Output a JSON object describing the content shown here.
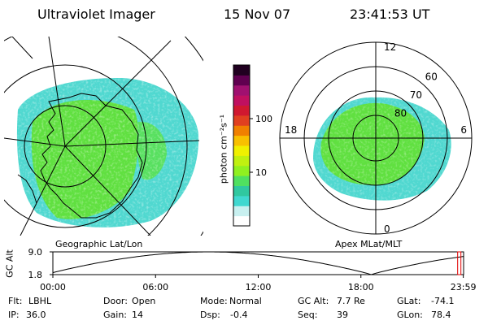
{
  "header": {
    "instrument": "Ultraviolet Imager",
    "date": "15 Nov 07",
    "time": "23:41:53 UT"
  },
  "colorbar": {
    "unit_label": "photon cm⁻²s⁻¹",
    "ticks": [
      {
        "label": "100",
        "value": 100
      },
      {
        "label": "10",
        "value": 10
      }
    ],
    "colors": [
      "#ffffff",
      "#c8f0f0",
      "#40d8d0",
      "#30c8a0",
      "#50e060",
      "#90f020",
      "#c0f010",
      "#f0f000",
      "#f8c000",
      "#f08000",
      "#e04020",
      "#d01830",
      "#c01060",
      "#a01070",
      "#600050",
      "#200020"
    ]
  },
  "left_panel": {
    "label": "Geographic Lat/Lon",
    "colors": {
      "cyan": "#50d8d0",
      "green": "#60e040",
      "light": "#c0f0ec"
    }
  },
  "right_panel": {
    "label": "Apex MLat/MLT",
    "mlt_labels": [
      {
        "label": "12",
        "angle": 0
      },
      {
        "label": "6",
        "angle": 90
      },
      {
        "label": "0",
        "angle": 180
      },
      {
        "label": "18",
        "angle": 270
      }
    ],
    "lat_labels": [
      {
        "label": "60",
        "lat": 60
      },
      {
        "label": "70",
        "lat": 70
      },
      {
        "label": "80",
        "lat": 80
      }
    ]
  },
  "timeline": {
    "ylabel": "GC Alt",
    "yticks": [
      {
        "label": "9.0",
        "value": 9.0
      },
      {
        "label": "1.8",
        "value": 1.8
      }
    ],
    "xticks": [
      {
        "label": "00:00",
        "hour": 0
      },
      {
        "label": "06:00",
        "hour": 6
      },
      {
        "label": "12:00",
        "hour": 12
      },
      {
        "label": "18:00",
        "hour": 18
      },
      {
        "label": "23:59",
        "hour": 23.983
      }
    ],
    "current_hour": 23.7,
    "marker_color": "#e00000"
  },
  "info": {
    "row1": [
      {
        "key": "Flt:",
        "value": "LBHL"
      },
      {
        "key": "Door:",
        "value": "Open"
      },
      {
        "key": "Mode:",
        "value": "Normal"
      },
      {
        "key": "GC Alt:",
        "value": "7.7 Re"
      },
      {
        "key": "GLat:",
        "value": "-74.1"
      }
    ],
    "row2": [
      {
        "key": "IP:",
        "value": "36.0"
      },
      {
        "key": "Gain:",
        "value": "14"
      },
      {
        "key": "Dsp:",
        "value": "-0.4"
      },
      {
        "key": "Seq:",
        "value": "39"
      },
      {
        "key": "GLon:",
        "value": "78.4"
      }
    ]
  }
}
